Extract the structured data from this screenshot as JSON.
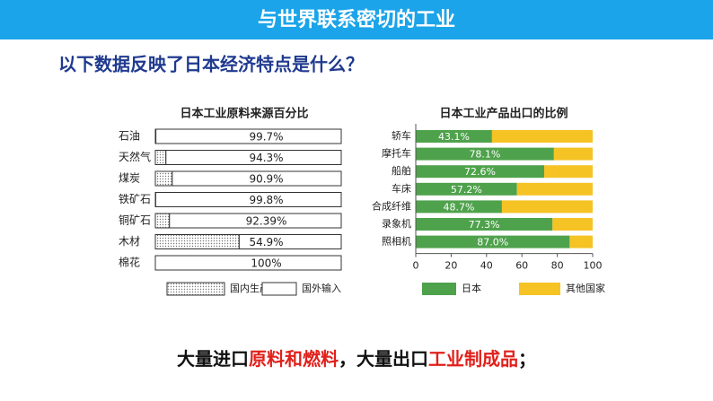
{
  "header": {
    "title": "与世界联系密切的工业"
  },
  "question": "以下数据反映了日本经济特点是什么？",
  "chart_data": [
    {
      "type": "hbar-stacked",
      "title": "日本工业原料来源百分比",
      "categories": [
        "石油",
        "天然气",
        "煤炭",
        "铁矿石",
        "铜矿石",
        "木材",
        "棉花"
      ],
      "series": [
        {
          "name": "国内生产",
          "color": "#8a8a8a",
          "pattern": "dotted",
          "values": [
            0.3,
            5.7,
            9.1,
            0.2,
            7.61,
            45.1,
            0
          ]
        },
        {
          "name": "国外输入",
          "color": "#ffffff",
          "values": [
            99.7,
            94.3,
            90.9,
            99.8,
            92.39,
            54.9,
            100
          ],
          "value_labels": [
            "99.7%",
            "94.3%",
            "90.9%",
            "99.8%",
            "92.39%",
            "54.9%",
            "100%"
          ]
        }
      ],
      "legend": "bottom"
    },
    {
      "type": "hbar-stacked",
      "title": "日本工业产品出口的比例",
      "categories": [
        "轿车",
        "摩托车",
        "船舶",
        "车床",
        "合成纤维",
        "录象机",
        "照相机"
      ],
      "series": [
        {
          "name": "日本",
          "color": "#4fa24c",
          "values": [
            43.1,
            78.1,
            72.6,
            57.2,
            48.7,
            77.3,
            87.0
          ],
          "value_labels": [
            "43.1%",
            "78.1%",
            "72.6%",
            "57.2%",
            "48.7%",
            "77.3%",
            "87.0%"
          ]
        },
        {
          "name": "其他国家",
          "color": "#f6c325",
          "values": [
            56.9,
            21.9,
            27.4,
            42.8,
            51.3,
            22.7,
            13.0
          ]
        }
      ],
      "xlim": [
        0,
        100
      ],
      "xticks": [
        0,
        20,
        40,
        60,
        80,
        100
      ],
      "legend": "bottom"
    }
  ],
  "conclusion": [
    {
      "text": "大量进口",
      "color": "#111111"
    },
    {
      "text": "原料和燃料",
      "color": "#e0201b"
    },
    {
      "text": "，大量出口",
      "color": "#111111"
    },
    {
      "text": "工业制成品",
      "color": "#e0201b"
    },
    {
      "text": "；",
      "color": "#111111"
    }
  ]
}
